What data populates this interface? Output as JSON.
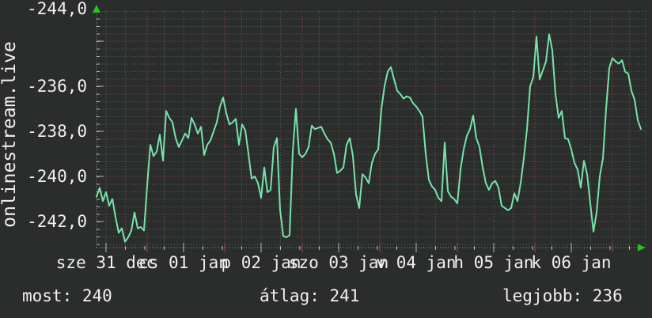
{
  "chart_data": {
    "type": "line",
    "title": "",
    "ylabel": "onlinestream.live",
    "y_tick_labels": [
      "-236,0",
      "-238,0",
      "-240,0",
      "-242,0",
      "-244,0"
    ],
    "y_tick_values": [
      -236,
      -238,
      -240,
      -242,
      -244
    ],
    "ylim": [
      -245.2,
      -234.5
    ],
    "x_tick_labels": [
      "sze 31 dec",
      "cs 01 jan",
      "p 02 jan",
      "szo 03 jan",
      "v 04 jan",
      "h 05 jan",
      "k 06 jan"
    ],
    "x_range_days_rel_first_tick": [
      -0.122,
      6.898
    ],
    "grid": true,
    "legend_position": "none",
    "series": [
      {
        "name": "onlinestream.live ping (negated ms)",
        "values": [
          -242.9,
          -242.5,
          -243.1,
          -242.7,
          -243.3,
          -243.0,
          -243.8,
          -244.5,
          -244.3,
          -244.9,
          -244.7,
          -244.4,
          -243.6,
          -244.3,
          -244.25,
          -244.4,
          -242.4,
          -240.6,
          -241.1,
          -240.9,
          -240.15,
          -241.3,
          -239.1,
          -239.4,
          -239.6,
          -240.3,
          -240.7,
          -240.4,
          -240.1,
          -240.3,
          -239.4,
          -239.7,
          -240.1,
          -239.8,
          -241.05,
          -240.6,
          -240.4,
          -240.0,
          -239.6,
          -238.9,
          -238.5,
          -239.2,
          -239.7,
          -239.6,
          -239.45,
          -240.6,
          -239.7,
          -239.95,
          -241.0,
          -242.1,
          -242.0,
          -242.3,
          -242.95,
          -241.6,
          -242.7,
          -242.6,
          -240.7,
          -240.3,
          -243.5,
          -244.65,
          -244.7,
          -244.6,
          -240.9,
          -239.0,
          -241.0,
          -241.15,
          -241.0,
          -240.7,
          -239.75,
          -239.9,
          -239.85,
          -239.8,
          -240.1,
          -240.35,
          -240.5,
          -241.0,
          -241.85,
          -241.75,
          -241.6,
          -240.6,
          -240.3,
          -241.1,
          -242.8,
          -243.4,
          -241.9,
          -242.05,
          -242.3,
          -241.4,
          -241.0,
          -240.8,
          -239.0,
          -238.0,
          -237.35,
          -237.15,
          -237.7,
          -238.2,
          -238.35,
          -238.55,
          -238.45,
          -238.5,
          -238.75,
          -238.9,
          -239.1,
          -239.35,
          -241.0,
          -242.15,
          -242.45,
          -242.6,
          -242.95,
          -243.1,
          -240.5,
          -242.65,
          -242.9,
          -243.0,
          -243.2,
          -241.7,
          -240.8,
          -240.2,
          -239.9,
          -239.3,
          -240.3,
          -240.7,
          -241.6,
          -242.3,
          -242.6,
          -242.3,
          -242.2,
          -242.5,
          -243.3,
          -243.4,
          -243.5,
          -243.4,
          -242.75,
          -243.1,
          -242.3,
          -241.2,
          -239.9,
          -238.0,
          -237.6,
          -235.8,
          -237.7,
          -237.3,
          -236.9,
          -235.7,
          -236.4,
          -238.35,
          -239.4,
          -239.1,
          -240.3,
          -240.35,
          -240.8,
          -241.4,
          -241.7,
          -242.5,
          -241.3,
          -241.9,
          -243.2,
          -244.45,
          -243.6,
          -242.0,
          -241.2,
          -239.0,
          -237.2,
          -236.75,
          -236.9,
          -237.0,
          -236.85,
          -237.35,
          -237.45,
          -238.2,
          -238.6,
          -239.5,
          -239.9
        ]
      }
    ]
  },
  "stats": {
    "most": {
      "text": "most: 240",
      "value": 240
    },
    "atlag": {
      "text": "átlag: 241",
      "value": 241
    },
    "legjobb": {
      "text": "legjobb: 236",
      "value": 236
    }
  },
  "colors": {
    "background": "#2b2d2c",
    "line": "#76e3a9",
    "grid_minor": "#5a5f5c",
    "grid_major_red": "#a14444",
    "axis_dots": "#9a9a9a",
    "tick": "#b5b5b5",
    "axis_arrow_green": "#24c524",
    "text": "#f0f0f0"
  }
}
